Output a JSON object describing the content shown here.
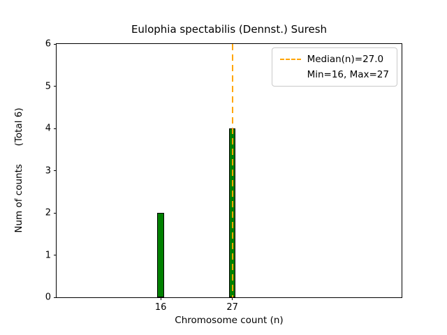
{
  "chart_data": {
    "type": "bar",
    "title": "Eulophia spectabilis (Dennst.) Suresh",
    "xlabel": "Chromosome count (n)",
    "ylabel": "Num of counts      (Total 6)",
    "categories": [
      16,
      27
    ],
    "values": [
      2,
      4
    ],
    "bar_width": 1,
    "bar_color": "#008000",
    "bar_edge_color": "#000000",
    "xlim": [
      0,
      53
    ],
    "ylim": [
      0,
      6
    ],
    "xticks": [
      16,
      27
    ],
    "yticks": [
      0,
      1,
      2,
      3,
      4,
      5,
      6
    ],
    "grid": false,
    "median_line": {
      "x": 27,
      "color": "#FFA500",
      "style": "dashed"
    },
    "legend": {
      "position": "upper right",
      "entries": [
        {
          "handle": "dashed-line",
          "color": "#FFA500",
          "label": "Median(n)=27.0"
        },
        {
          "handle": "none",
          "color": null,
          "label": "Min=16, Max=27"
        }
      ]
    }
  }
}
